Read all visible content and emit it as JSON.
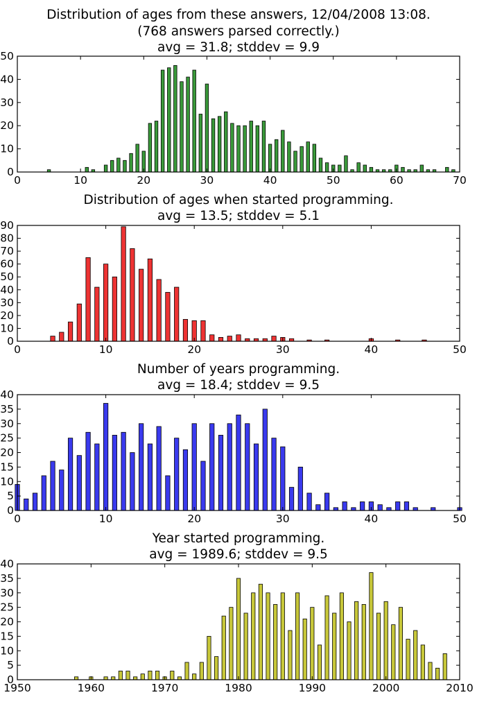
{
  "chart_data": [
    {
      "type": "bar",
      "title_lines": [
        "Distribution of ages from these answers, 12/04/2008 13:08.",
        "(768 answers parsed correctly.)",
        "avg = 31.8; stddev = 9.9"
      ],
      "xlim": [
        0,
        70
      ],
      "ylim": [
        0,
        50
      ],
      "xticks": [
        0,
        10,
        20,
        30,
        40,
        50,
        60,
        70
      ],
      "yticks": [
        0,
        10,
        20,
        30,
        40,
        50
      ],
      "color": "#3a9a3a",
      "x": [
        5,
        11,
        12,
        14,
        15,
        16,
        17,
        18,
        19,
        20,
        21,
        22,
        23,
        24,
        25,
        26,
        27,
        28,
        29,
        30,
        31,
        32,
        33,
        34,
        35,
        36,
        37,
        38,
        39,
        40,
        41,
        42,
        43,
        44,
        45,
        46,
        47,
        48,
        49,
        50,
        51,
        52,
        53,
        54,
        55,
        56,
        57,
        58,
        59,
        60,
        61,
        62,
        63,
        64,
        65,
        66,
        68,
        69
      ],
      "values": [
        1,
        2,
        1,
        3,
        5,
        6,
        5,
        8,
        12,
        9,
        21,
        22,
        44,
        45,
        46,
        39,
        41,
        44,
        25,
        38,
        23,
        24,
        26,
        21,
        20,
        20,
        22,
        20,
        22,
        12,
        14,
        18,
        13,
        9,
        11,
        13,
        12,
        6,
        4,
        3,
        3,
        7,
        1,
        4,
        3,
        2,
        1,
        1,
        1,
        3,
        2,
        1,
        1,
        3,
        1,
        1,
        2,
        1
      ]
    },
    {
      "type": "bar",
      "title_lines": [
        "Distribution of ages when started programming.",
        "avg = 13.5; stddev = 5.1"
      ],
      "xlim": [
        0,
        50
      ],
      "ylim": [
        0,
        90
      ],
      "xticks": [
        0,
        10,
        20,
        30,
        40,
        50
      ],
      "yticks": [
        0,
        10,
        20,
        30,
        40,
        50,
        60,
        70,
        80,
        90
      ],
      "color": "#ee3333",
      "x": [
        4,
        5,
        6,
        7,
        8,
        9,
        10,
        11,
        12,
        13,
        14,
        15,
        16,
        17,
        18,
        19,
        20,
        21,
        22,
        23,
        24,
        25,
        26,
        27,
        28,
        29,
        30,
        31,
        33,
        35,
        40,
        43,
        46
      ],
      "values": [
        4,
        7,
        15,
        29,
        65,
        42,
        60,
        50,
        89,
        72,
        56,
        64,
        48,
        38,
        42,
        17,
        16,
        16,
        5,
        3,
        4,
        5,
        2,
        2,
        2,
        4,
        3,
        2,
        1,
        1,
        2,
        1,
        1
      ]
    },
    {
      "type": "bar",
      "title_lines": [
        "Number of years programming.",
        "avg = 18.4; stddev = 9.5"
      ],
      "xlim": [
        0,
        50
      ],
      "ylim": [
        0,
        40
      ],
      "xticks": [
        0,
        10,
        20,
        30,
        40,
        50
      ],
      "yticks": [
        0,
        5,
        10,
        15,
        20,
        25,
        30,
        35,
        40
      ],
      "color": "#3a3aee",
      "x": [
        0,
        1,
        2,
        3,
        4,
        5,
        6,
        7,
        8,
        9,
        10,
        11,
        12,
        13,
        14,
        15,
        16,
        17,
        18,
        19,
        20,
        21,
        22,
        23,
        24,
        25,
        26,
        27,
        28,
        29,
        30,
        31,
        32,
        33,
        34,
        35,
        36,
        37,
        38,
        39,
        40,
        41,
        42,
        43,
        44,
        45,
        47,
        50
      ],
      "values": [
        9,
        4,
        6,
        12,
        17,
        14,
        25,
        19,
        27,
        23,
        37,
        26,
        27,
        20,
        30,
        23,
        29,
        12,
        25,
        21,
        30,
        17,
        30,
        26,
        30,
        33,
        30,
        23,
        35,
        25,
        22,
        8,
        15,
        6,
        2,
        6,
        1,
        3,
        1,
        3,
        3,
        2,
        1,
        3,
        3,
        1,
        1,
        1
      ]
    },
    {
      "type": "bar",
      "title_lines": [
        "Year started programming.",
        "avg = 1989.6; stddev = 9.5"
      ],
      "xlim": [
        1950,
        2010
      ],
      "ylim": [
        0,
        40
      ],
      "xticks": [
        1950,
        1960,
        1970,
        1980,
        1990,
        2000,
        2010
      ],
      "yticks": [
        0,
        5,
        10,
        15,
        20,
        25,
        30,
        35,
        40
      ],
      "color": "#c8c83a",
      "x": [
        1958,
        1960,
        1962,
        1963,
        1964,
        1965,
        1966,
        1967,
        1968,
        1969,
        1970,
        1971,
        1972,
        1973,
        1974,
        1975,
        1976,
        1977,
        1978,
        1979,
        1980,
        1981,
        1982,
        1983,
        1984,
        1985,
        1986,
        1987,
        1988,
        1989,
        1990,
        1991,
        1992,
        1993,
        1994,
        1995,
        1996,
        1997,
        1998,
        1999,
        2000,
        2001,
        2002,
        2003,
        2004,
        2005,
        2006,
        2007,
        2008
      ],
      "values": [
        1,
        1,
        1,
        1,
        3,
        3,
        1,
        2,
        3,
        3,
        1,
        3,
        1,
        6,
        2,
        6,
        15,
        8,
        22,
        25,
        35,
        23,
        30,
        33,
        30,
        26,
        30,
        17,
        30,
        21,
        25,
        12,
        29,
        23,
        30,
        20,
        27,
        26,
        37,
        23,
        27,
        19,
        25,
        14,
        17,
        12,
        6,
        4,
        9
      ]
    }
  ]
}
